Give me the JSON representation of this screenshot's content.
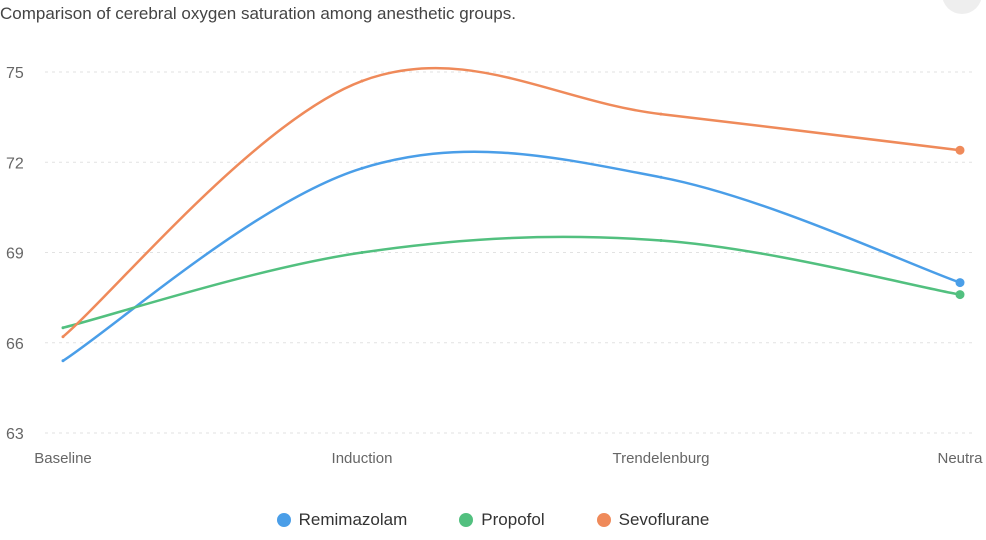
{
  "chart_data": {
    "type": "line",
    "title": "Comparison of cerebral oxygen saturation among anesthetic groups.",
    "categories": [
      "Baseline",
      "Induction",
      "Trendelenburg",
      "Neutra"
    ],
    "yticks": [
      63,
      66,
      69,
      72,
      75
    ],
    "ylim": [
      63,
      75
    ],
    "grid": true,
    "legend_position": "bottom",
    "series": [
      {
        "name": "Remimazolam",
        "color": "#4a9ee8",
        "values": [
          65.4,
          71.8,
          71.5,
          68.0
        ]
      },
      {
        "name": "Propofol",
        "color": "#52c07f",
        "values": [
          66.5,
          69.0,
          69.4,
          67.6
        ]
      },
      {
        "name": "Sevoflurane",
        "color": "#ef8a5a",
        "values": [
          66.2,
          74.7,
          73.6,
          72.4
        ]
      }
    ]
  }
}
